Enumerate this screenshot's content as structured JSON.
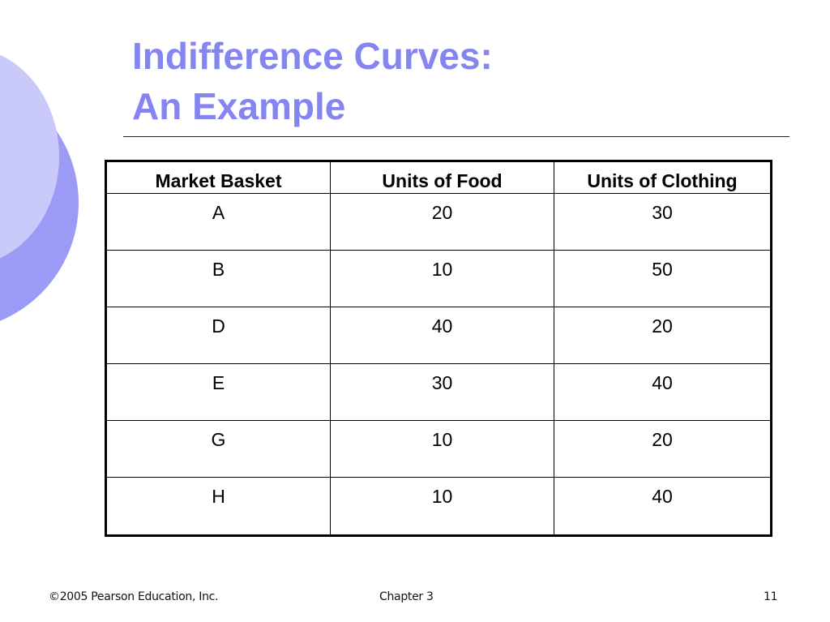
{
  "slide": {
    "title_line1": "Indifference Curves:",
    "title_line2": "An Example",
    "accent_color": "#8585f2",
    "table": {
      "headers": [
        "Market Basket",
        "Units of Food",
        "Units of Clothing"
      ],
      "rows": [
        [
          "A",
          "20",
          "30"
        ],
        [
          "B",
          "10",
          "50"
        ],
        [
          "D",
          "40",
          "20"
        ],
        [
          "E",
          "30",
          "40"
        ],
        [
          "G",
          "10",
          "20"
        ],
        [
          "H",
          "10",
          "40"
        ]
      ]
    },
    "footer": {
      "copyright": "©2005 Pearson Education, Inc.",
      "chapter": "Chapter 3",
      "page": "11"
    }
  }
}
